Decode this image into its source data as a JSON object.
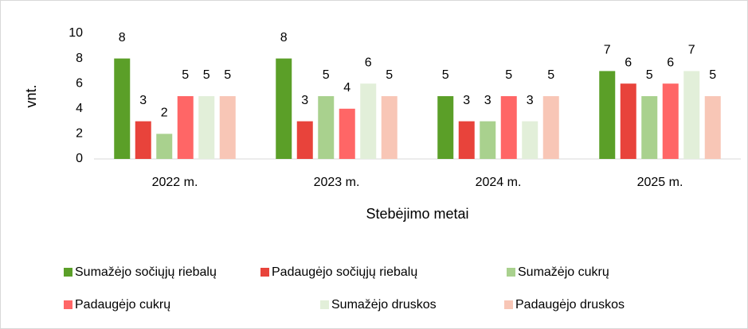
{
  "chart_data": {
    "type": "bar",
    "y_label": "vnt.",
    "x_label": "Stebėjimo metai",
    "categories": [
      "2022 m.",
      "2023 m.",
      "2024 m.",
      "2025 m."
    ],
    "series": [
      {
        "name": "Sumažėjo sočiųjų riebalų",
        "color": "#5b9f28",
        "values": [
          8,
          8,
          5,
          7
        ]
      },
      {
        "name": "Padaugėjo sočiųjų riebalų",
        "color": "#e8433b",
        "values": [
          3,
          3,
          3,
          6
        ]
      },
      {
        "name": "Sumažėjo cukrų",
        "color": "#a9d18e",
        "values": [
          2,
          5,
          3,
          5
        ]
      },
      {
        "name": "Padaugėjo cukrų",
        "color": "#ff6666",
        "values": [
          5,
          4,
          5,
          6
        ]
      },
      {
        "name": "Sumažėjo druskos",
        "color": "#e2efd9",
        "values": [
          5,
          6,
          3,
          7
        ]
      },
      {
        "name": "Padaugėjo druskos",
        "color": "#f8c6b6",
        "values": [
          5,
          5,
          5,
          5
        ]
      }
    ],
    "ylim": [
      0,
      10
    ],
    "yticks": [
      0,
      2,
      4,
      6,
      8,
      10
    ],
    "grid": false,
    "legend": "bottom"
  }
}
